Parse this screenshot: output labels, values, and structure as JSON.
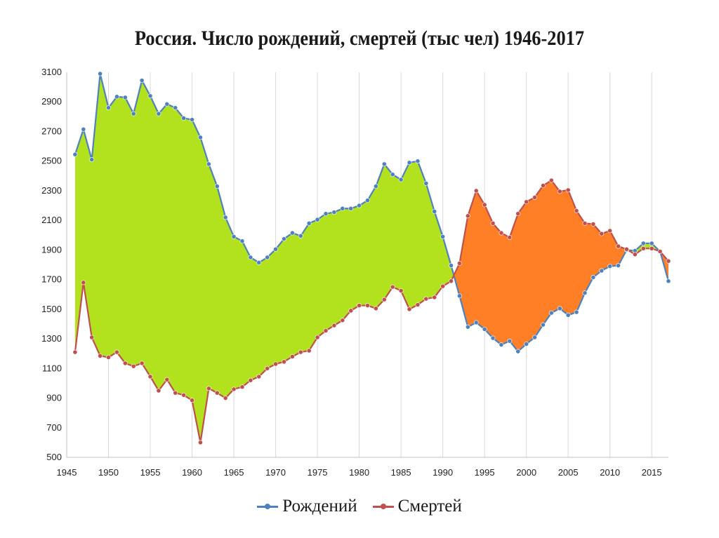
{
  "chart_data": {
    "type": "line",
    "title": "Россия. Число рождений, смертей (тыс чел) 1946-2017",
    "xlabel": "",
    "ylabel": "",
    "xlim": [
      1945,
      2017
    ],
    "ylim": [
      500,
      3100
    ],
    "x_ticks": [
      1945,
      1950,
      1955,
      1960,
      1965,
      1970,
      1975,
      1980,
      1985,
      1990,
      1995,
      2000,
      2005,
      2010,
      2015
    ],
    "y_ticks": [
      500,
      700,
      900,
      1100,
      1300,
      1500,
      1700,
      1900,
      2100,
      2300,
      2500,
      2700,
      2900,
      3100
    ],
    "grid": "vertical",
    "legend_position": "bottom",
    "colors": {
      "births": "#4F81BD",
      "deaths": "#C0504D",
      "fill_births_higher": "#B2E21E",
      "fill_deaths_higher": "#FF7F27",
      "grid": "#d9d9d9"
    },
    "x": [
      1946,
      1947,
      1948,
      1949,
      1950,
      1951,
      1952,
      1953,
      1954,
      1955,
      1956,
      1957,
      1958,
      1959,
      1960,
      1961,
      1962,
      1963,
      1964,
      1965,
      1966,
      1967,
      1968,
      1969,
      1970,
      1971,
      1972,
      1973,
      1974,
      1975,
      1976,
      1977,
      1978,
      1979,
      1980,
      1981,
      1982,
      1983,
      1984,
      1985,
      1986,
      1987,
      1988,
      1989,
      1990,
      1991,
      1992,
      1993,
      1994,
      1995,
      1996,
      1997,
      1998,
      1999,
      2000,
      2001,
      2002,
      2003,
      2004,
      2005,
      2006,
      2007,
      2008,
      2009,
      2010,
      2011,
      2012,
      2013,
      2014,
      2015,
      2016,
      2017
    ],
    "series": [
      {
        "name": "Рождений",
        "values": [
          2545,
          2715,
          2510,
          3090,
          2860,
          2935,
          2930,
          2820,
          3045,
          2940,
          2820,
          2885,
          2860,
          2790,
          2780,
          2660,
          2480,
          2330,
          2120,
          1990,
          1960,
          1850,
          1815,
          1850,
          1905,
          1975,
          2015,
          1995,
          2080,
          2105,
          2145,
          2155,
          2180,
          2180,
          2200,
          2235,
          2330,
          2480,
          2410,
          2375,
          2490,
          2500,
          2350,
          2160,
          1990,
          1795,
          1590,
          1380,
          1410,
          1365,
          1305,
          1260,
          1285,
          1215,
          1265,
          1310,
          1395,
          1475,
          1505,
          1460,
          1480,
          1610,
          1715,
          1760,
          1790,
          1795,
          1900,
          1895,
          1945,
          1945,
          1890,
          1690
        ]
      },
      {
        "name": "Смертей",
        "values": [
          1210,
          1680,
          1310,
          1185,
          1175,
          1210,
          1135,
          1115,
          1135,
          1045,
          950,
          1025,
          935,
          920,
          885,
          600,
          965,
          935,
          900,
          960,
          975,
          1020,
          1045,
          1100,
          1130,
          1145,
          1180,
          1210,
          1220,
          1310,
          1355,
          1390,
          1425,
          1490,
          1525,
          1525,
          1505,
          1565,
          1650,
          1625,
          1500,
          1530,
          1570,
          1580,
          1655,
          1690,
          1810,
          2130,
          2300,
          2205,
          2080,
          2015,
          1985,
          2145,
          2225,
          2255,
          2335,
          2370,
          2295,
          2305,
          2165,
          2080,
          2075,
          2010,
          2030,
          1925,
          1905,
          1870,
          1910,
          1910,
          1890,
          1825
        ]
      }
    ]
  }
}
